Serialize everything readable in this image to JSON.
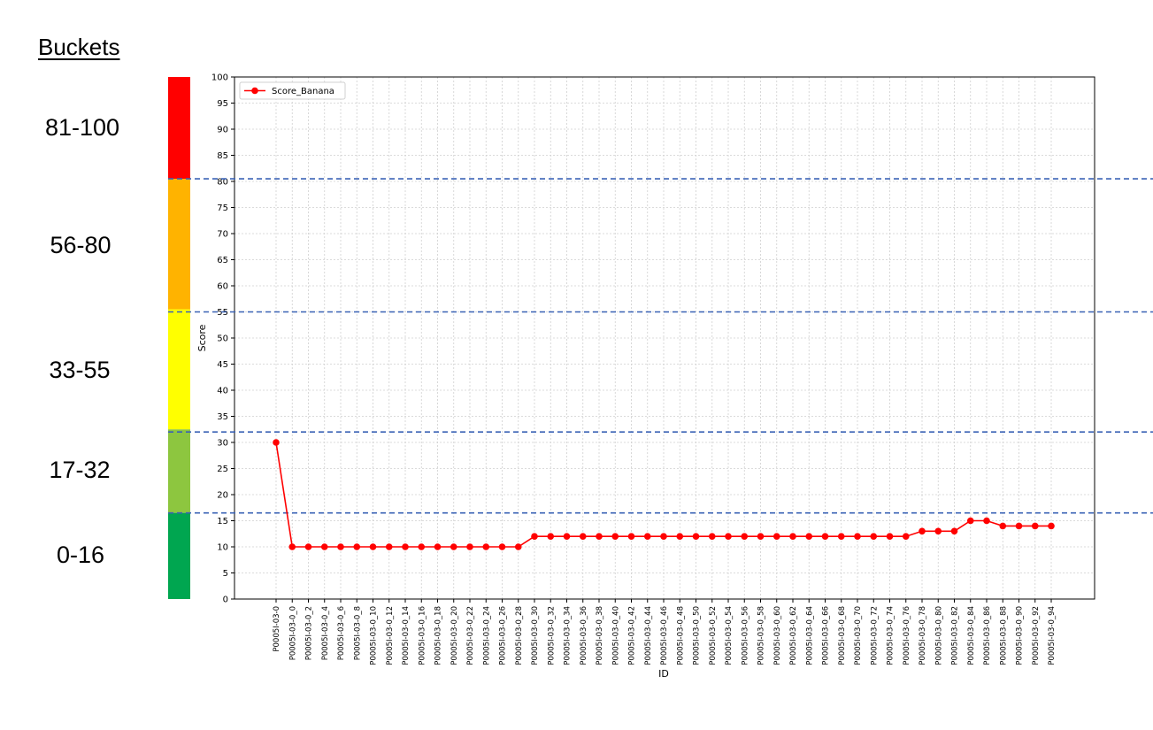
{
  "buckets_title": "Buckets",
  "buckets": [
    {
      "label": "81-100",
      "min": 81,
      "max": 100,
      "color": "#ff0000"
    },
    {
      "label": "56-80",
      "min": 56,
      "max": 80,
      "color": "#ffb300"
    },
    {
      "label": "33-55",
      "min": 33,
      "max": 55,
      "color": "#ffff00"
    },
    {
      "label": "17-32",
      "min": 17,
      "max": 32,
      "color": "#8dc63f"
    },
    {
      "label": "0-16",
      "min": 0,
      "max": 16,
      "color": "#00a650"
    }
  ],
  "chart_data": {
    "type": "line",
    "xlabel": "ID",
    "ylabel": "Score",
    "ylim": [
      0,
      100
    ],
    "yticks": [
      0,
      5,
      10,
      15,
      20,
      25,
      30,
      35,
      40,
      45,
      50,
      55,
      60,
      65,
      70,
      75,
      80,
      85,
      90,
      95,
      100
    ],
    "grid": true,
    "legend_position": "top-left",
    "threshold_lines": [
      16.5,
      32,
      55,
      80.5
    ],
    "threshold_color": "#3a62b5",
    "series_color": "#ff0000",
    "categories": [
      "P0005I-03-0",
      "P0005I-03-0_0",
      "P0005I-03-0_2",
      "P0005I-03-0_4",
      "P0005I-03-0_6",
      "P0005I-03-0_8",
      "P0005I-03-0_10",
      "P0005I-03-0_12",
      "P0005I-03-0_14",
      "P0005I-03-0_16",
      "P0005I-03-0_18",
      "P0005I-03-0_20",
      "P0005I-03-0_22",
      "P0005I-03-0_24",
      "P0005I-03-0_26",
      "P0005I-03-0_28",
      "P0005I-03-0_30",
      "P0005I-03-0_32",
      "P0005I-03-0_34",
      "P0005I-03-0_36",
      "P0005I-03-0_38",
      "P0005I-03-0_40",
      "P0005I-03-0_42",
      "P0005I-03-0_44",
      "P0005I-03-0_46",
      "P0005I-03-0_48",
      "P0005I-03-0_50",
      "P0005I-03-0_52",
      "P0005I-03-0_54",
      "P0005I-03-0_56",
      "P0005I-03-0_58",
      "P0005I-03-0_60",
      "P0005I-03-0_62",
      "P0005I-03-0_64",
      "P0005I-03-0_66",
      "P0005I-03-0_68",
      "P0005I-03-0_70",
      "P0005I-03-0_72",
      "P0005I-03-0_74",
      "P0005I-03-0_76",
      "P0005I-03-0_78",
      "P0005I-03-0_80",
      "P0005I-03-0_82",
      "P0005I-03-0_84",
      "P0005I-03-0_86",
      "P0005I-03-0_88",
      "P0005I-03-0_90",
      "P0005I-03-0_92",
      "P0005I-03-0_94"
    ],
    "series": [
      {
        "name": "Score_Banana",
        "values": [
          30,
          10,
          10,
          10,
          10,
          10,
          10,
          10,
          10,
          10,
          10,
          10,
          10,
          10,
          10,
          10,
          12,
          12,
          12,
          12,
          12,
          12,
          12,
          12,
          12,
          12,
          12,
          12,
          12,
          12,
          12,
          12,
          12,
          12,
          12,
          12,
          12,
          12,
          12,
          12,
          13,
          13,
          13,
          15,
          15,
          14,
          14,
          14,
          14
        ]
      }
    ]
  }
}
